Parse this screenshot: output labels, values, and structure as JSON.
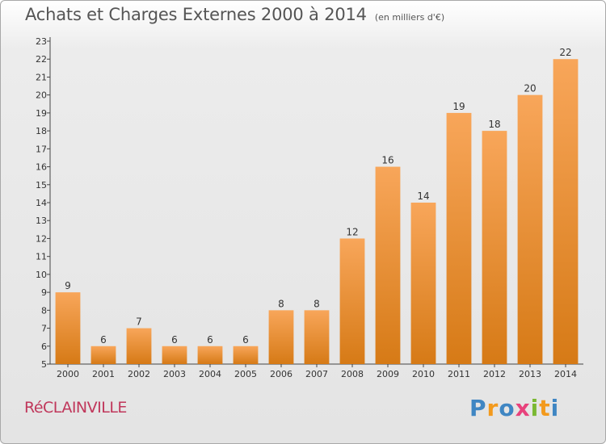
{
  "title": "Achats et Charges Externes 2000 à 2014",
  "subtitle": "(en milliers d'€)",
  "commune": "RéCLAINVILLE",
  "logo": "Proxiti",
  "colors": {
    "bar_light": "#f8a65a",
    "bar_dark": "#d67a16",
    "commune": "#c0375b",
    "axis": "#444444"
  },
  "chart_data": {
    "type": "bar",
    "title": "Achats et Charges Externes 2000 à 2014",
    "subtitle": "(en milliers d'€)",
    "xlabel": "",
    "ylabel": "",
    "categories": [
      "2000",
      "2001",
      "2002",
      "2003",
      "2004",
      "2005",
      "2006",
      "2007",
      "2008",
      "2009",
      "2010",
      "2011",
      "2012",
      "2013",
      "2014"
    ],
    "values": [
      9,
      6,
      7,
      6,
      6,
      6,
      8,
      8,
      12,
      16,
      14,
      19,
      18,
      20,
      22
    ],
    "ylim": [
      5,
      23
    ],
    "yticks": [
      5,
      6,
      7,
      8,
      9,
      10,
      11,
      12,
      13,
      14,
      15,
      16,
      17,
      18,
      19,
      20,
      21,
      22,
      23
    ],
    "grid": false,
    "legend": "none"
  }
}
